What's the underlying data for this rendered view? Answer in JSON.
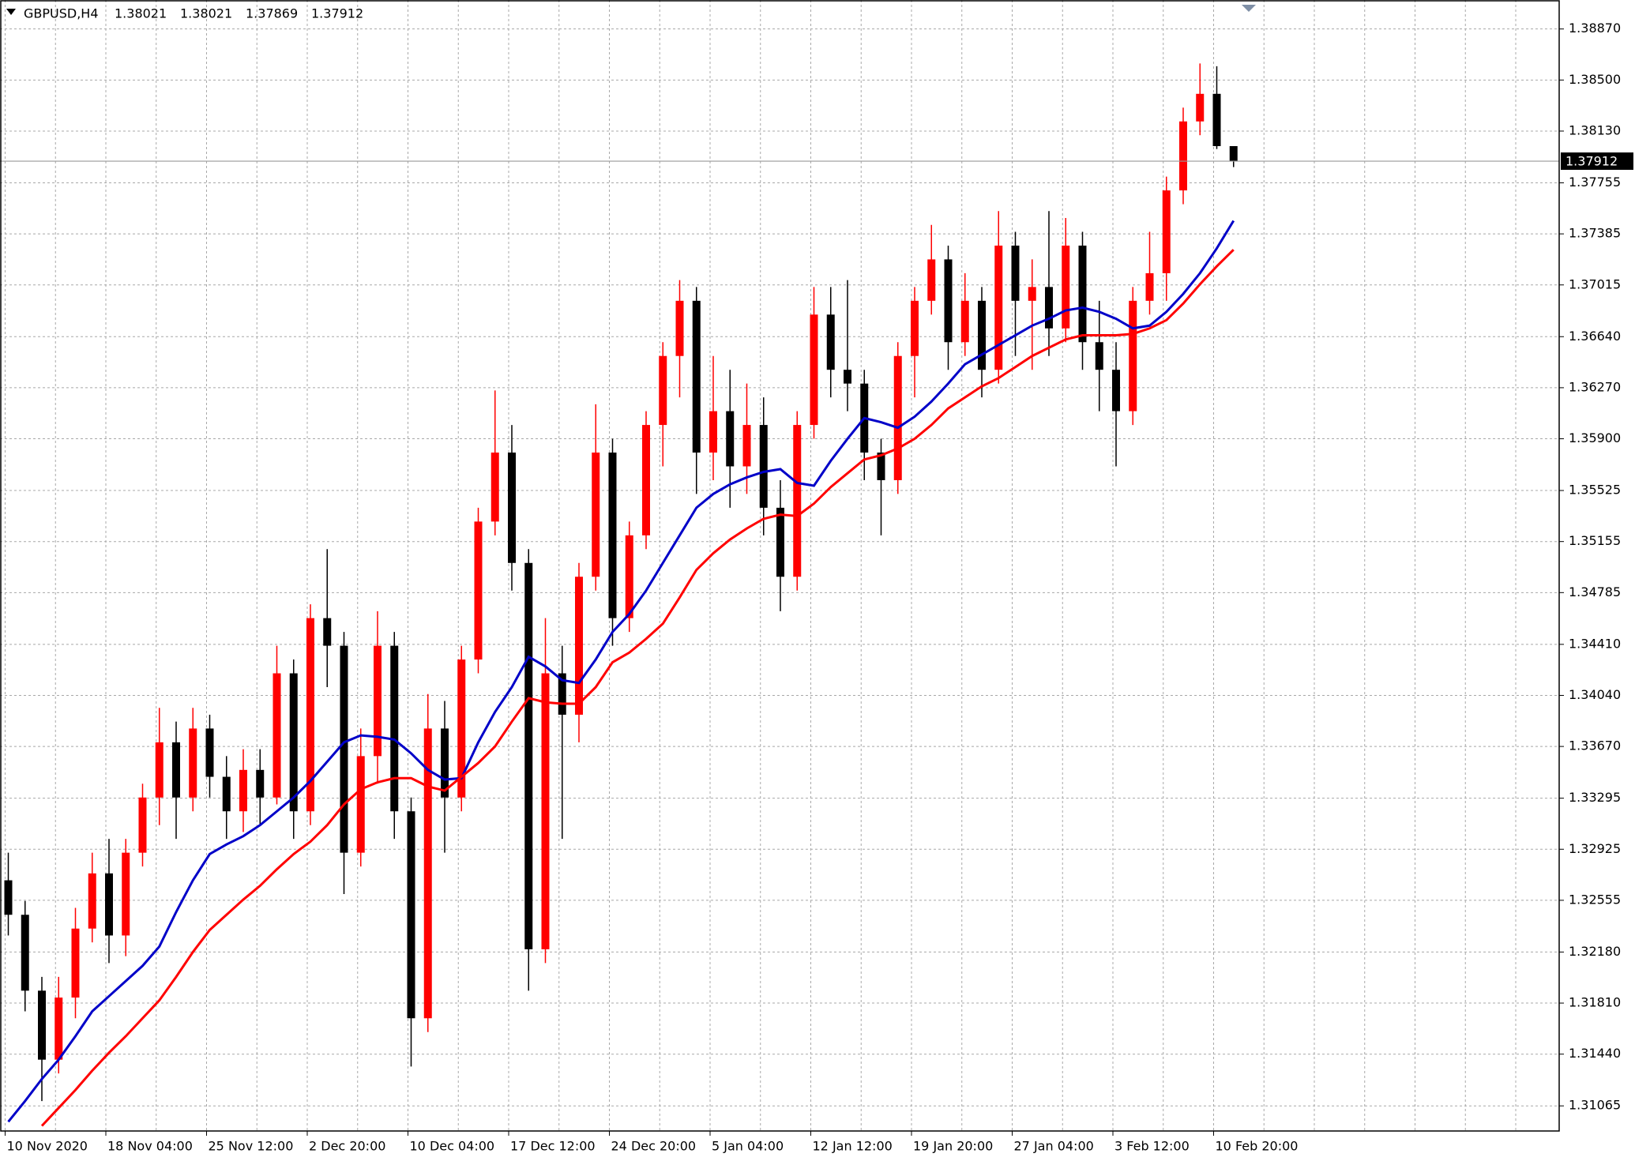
{
  "chart_data": {
    "type": "candlestick",
    "title": "GBPUSD,H4",
    "time_labels": [
      "10 Nov 2020",
      "18 Nov 04:00",
      "25 Nov 12:00",
      "2 Dec 20:00",
      "10 Dec 04:00",
      "17 Dec 12:00",
      "24 Dec 20:00",
      "5 Jan 04:00",
      "12 Jan 12:00",
      "19 Jan 20:00",
      "27 Jan 04:00",
      "3 Feb 12:00",
      "10 Feb 20:00"
    ],
    "up_color": "#ff0000",
    "down_color": "#000000",
    "candles": {
      "open": [
        1.327,
        1.3245,
        1.319,
        1.314,
        1.3185,
        1.3235,
        1.3275,
        1.323,
        1.329,
        1.333,
        1.337,
        1.333,
        1.338,
        1.3345,
        1.332,
        1.335,
        1.333,
        1.342,
        1.332,
        1.346,
        1.344,
        1.329,
        1.336,
        1.344,
        1.332,
        1.317,
        1.338,
        1.333,
        1.343,
        1.353,
        1.358,
        1.35,
        1.322,
        1.342,
        1.339,
        1.349,
        1.358,
        1.346,
        1.352,
        1.36,
        1.365,
        1.369,
        1.358,
        1.361,
        1.357,
        1.36,
        1.354,
        1.349,
        1.36,
        1.368,
        1.364,
        1.363,
        1.358,
        1.356,
        1.365,
        1.369,
        1.372,
        1.366,
        1.369,
        1.364,
        1.373,
        1.369,
        1.37,
        1.367,
        1.373,
        1.366,
        1.364,
        1.361,
        1.369,
        1.371,
        1.377,
        1.382,
        1.384,
        1.38021
      ],
      "high": [
        1.329,
        1.3255,
        1.32,
        1.32,
        1.325,
        1.329,
        1.33,
        1.33,
        1.334,
        1.3395,
        1.3385,
        1.3395,
        1.339,
        1.336,
        1.3365,
        1.3365,
        1.344,
        1.343,
        1.347,
        1.351,
        1.345,
        1.338,
        1.3465,
        1.345,
        1.333,
        1.3405,
        1.34,
        1.344,
        1.354,
        1.3625,
        1.36,
        1.351,
        1.346,
        1.344,
        1.35,
        1.3615,
        1.359,
        1.353,
        1.361,
        1.366,
        1.3705,
        1.37,
        1.365,
        1.364,
        1.363,
        1.362,
        1.356,
        1.361,
        1.37,
        1.37,
        1.3705,
        1.364,
        1.359,
        1.366,
        1.37,
        1.3745,
        1.373,
        1.371,
        1.37,
        1.3755,
        1.374,
        1.372,
        1.3755,
        1.375,
        1.374,
        1.369,
        1.366,
        1.37,
        1.374,
        1.378,
        1.383,
        1.3862,
        1.386,
        1.38021
      ],
      "low": [
        1.323,
        1.3175,
        1.311,
        1.313,
        1.317,
        1.3225,
        1.321,
        1.3215,
        1.328,
        1.331,
        1.33,
        1.332,
        1.333,
        1.33,
        1.3305,
        1.331,
        1.3325,
        1.33,
        1.331,
        1.341,
        1.326,
        1.328,
        1.334,
        1.33,
        1.3135,
        1.316,
        1.329,
        1.332,
        1.342,
        1.352,
        1.348,
        1.319,
        1.321,
        1.33,
        1.337,
        1.348,
        1.344,
        1.345,
        1.351,
        1.357,
        1.362,
        1.355,
        1.356,
        1.354,
        1.355,
        1.352,
        1.3465,
        1.348,
        1.359,
        1.362,
        1.361,
        1.356,
        1.352,
        1.355,
        1.362,
        1.368,
        1.364,
        1.365,
        1.362,
        1.363,
        1.365,
        1.364,
        1.365,
        1.366,
        1.364,
        1.361,
        1.357,
        1.36,
        1.368,
        1.369,
        1.376,
        1.381,
        1.38,
        1.37869
      ],
      "close": [
        1.3245,
        1.319,
        1.314,
        1.3185,
        1.3235,
        1.3275,
        1.323,
        1.329,
        1.333,
        1.337,
        1.333,
        1.338,
        1.3345,
        1.332,
        1.335,
        1.333,
        1.342,
        1.332,
        1.346,
        1.344,
        1.329,
        1.336,
        1.344,
        1.332,
        1.317,
        1.338,
        1.333,
        1.343,
        1.353,
        1.358,
        1.35,
        1.322,
        1.342,
        1.339,
        1.349,
        1.358,
        1.346,
        1.352,
        1.36,
        1.365,
        1.369,
        1.358,
        1.361,
        1.357,
        1.36,
        1.354,
        1.349,
        1.36,
        1.368,
        1.364,
        1.363,
        1.358,
        1.356,
        1.365,
        1.369,
        1.372,
        1.366,
        1.369,
        1.364,
        1.373,
        1.369,
        1.37,
        1.367,
        1.373,
        1.366,
        1.364,
        1.361,
        1.369,
        1.371,
        1.377,
        1.382,
        1.384,
        1.38021,
        1.37912
      ]
    },
    "lines": [
      {
        "color": "#0000c8",
        "values": [
          1.3095,
          1.311,
          1.3126,
          1.314,
          1.3157,
          1.3175,
          1.3186,
          1.3197,
          1.3208,
          1.3222,
          1.3247,
          1.327,
          1.3289,
          1.3296,
          1.3302,
          1.331,
          1.332,
          1.333,
          1.3342,
          1.3356,
          1.337,
          1.3375,
          1.3374,
          1.3372,
          1.3362,
          1.335,
          1.3343,
          1.3344,
          1.337,
          1.3392,
          1.341,
          1.3432,
          1.3425,
          1.3415,
          1.3413,
          1.343,
          1.345,
          1.3463,
          1.348,
          1.35,
          1.352,
          1.354,
          1.355,
          1.3557,
          1.3562,
          1.3566,
          1.3568,
          1.3558,
          1.3556,
          1.3574,
          1.359,
          1.3605,
          1.3602,
          1.3598,
          1.3606,
          1.3617,
          1.363,
          1.3644,
          1.3651,
          1.3658,
          1.3665,
          1.3672,
          1.3677,
          1.3683,
          1.3685,
          1.3682,
          1.3677,
          1.367,
          1.3672,
          1.3682,
          1.3695,
          1.371,
          1.3728,
          1.3748
        ]
      },
      {
        "color": "#ff0000",
        "values": [
          null,
          null,
          1.3092,
          1.3105,
          1.3118,
          1.3132,
          1.3145,
          1.3157,
          1.317,
          1.3183,
          1.32,
          1.3218,
          1.3234,
          1.3245,
          1.3256,
          1.3266,
          1.3278,
          1.3289,
          1.3298,
          1.331,
          1.3325,
          1.3336,
          1.3341,
          1.3344,
          1.3344,
          1.3338,
          1.3335,
          1.3345,
          1.3355,
          1.3367,
          1.3385,
          1.3402,
          1.3399,
          1.3398,
          1.3398,
          1.341,
          1.3428,
          1.3435,
          1.3445,
          1.3456,
          1.3475,
          1.3495,
          1.3507,
          1.3517,
          1.3525,
          1.3532,
          1.3535,
          1.3534,
          1.3543,
          1.3555,
          1.3565,
          1.3575,
          1.3578,
          1.3583,
          1.359,
          1.36,
          1.3612,
          1.362,
          1.3628,
          1.3634,
          1.3642,
          1.365,
          1.3656,
          1.3662,
          1.3665,
          1.3665,
          1.3665,
          1.3666,
          1.367,
          1.3676,
          1.3688,
          1.3702,
          1.3715,
          1.3727
        ]
      }
    ],
    "ylim": [
      1.30883,
      1.3908
    ],
    "yticks": [
      {
        "value": 1.3887,
        "label": "1.38870"
      },
      {
        "value": 1.385,
        "label": "1.38500"
      },
      {
        "value": 1.3813,
        "label": "1.38130"
      },
      {
        "value": 1.37755,
        "label": "1.37755"
      },
      {
        "value": 1.37385,
        "label": "1.37385"
      },
      {
        "value": 1.37015,
        "label": "1.37015"
      },
      {
        "value": 1.3664,
        "label": "1.36640"
      },
      {
        "value": 1.3627,
        "label": "1.36270"
      },
      {
        "value": 1.359,
        "label": "1.35900"
      },
      {
        "value": 1.35525,
        "label": "1.35525"
      },
      {
        "value": 1.35155,
        "label": "1.35155"
      },
      {
        "value": 1.34785,
        "label": "1.34785"
      },
      {
        "value": 1.3441,
        "label": "1.34410"
      },
      {
        "value": 1.3404,
        "label": "1.34040"
      },
      {
        "value": 1.3367,
        "label": "1.33670"
      },
      {
        "value": 1.33295,
        "label": "1.33295"
      },
      {
        "value": 1.32925,
        "label": "1.32925"
      },
      {
        "value": 1.32555,
        "label": "1.32555"
      },
      {
        "value": 1.3218,
        "label": "1.32180"
      },
      {
        "value": 1.3181,
        "label": "1.31810"
      },
      {
        "value": 1.3144,
        "label": "1.31440"
      },
      {
        "value": 1.31065,
        "label": "1.31065"
      }
    ],
    "grid": true
  }
}
